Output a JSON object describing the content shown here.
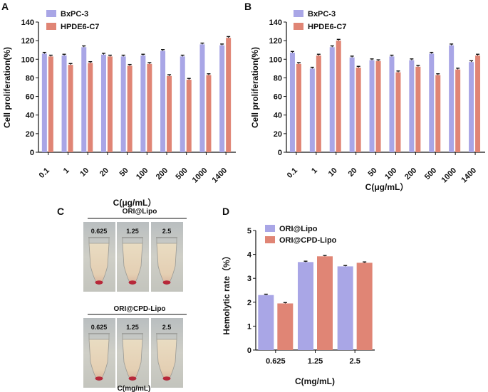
{
  "colors": {
    "series1": "#a9a6e6",
    "series2": "#e08575",
    "axis": "#111111",
    "errbar": "#111111"
  },
  "chart_data": [
    {
      "panel": "A",
      "type": "bar",
      "ylabel": "Cell proliferation(%)",
      "xlabel": "C(μg/mL）",
      "ylim": [
        0,
        140
      ],
      "yticks": [
        0,
        20,
        40,
        60,
        80,
        100,
        120,
        140
      ],
      "categories": [
        "0.1",
        "1",
        "10",
        "20",
        "50",
        "100",
        "200",
        "500",
        "1000",
        "1400"
      ],
      "series": [
        {
          "name": "BxPC-3",
          "values": [
            106,
            104,
            113,
            105,
            103,
            104,
            109,
            103,
            116,
            115
          ]
        },
        {
          "name": "HPDE6-C7",
          "values": [
            103,
            94,
            96,
            103,
            93,
            95,
            82,
            78,
            83,
            123
          ]
        }
      ],
      "legend": "top-left"
    },
    {
      "panel": "B",
      "type": "bar",
      "ylabel": "Cell proliferation(%)",
      "xlabel": "C(μg/mL）",
      "ylim": [
        0,
        140
      ],
      "yticks": [
        0,
        20,
        40,
        60,
        80,
        100,
        120,
        140
      ],
      "categories": [
        "0.1",
        "1",
        "10",
        "20",
        "50",
        "100",
        "200",
        "500",
        "1000",
        "1400"
      ],
      "series": [
        {
          "name": "BxPC-3",
          "values": [
            107,
            90,
            113,
            102,
            99,
            103,
            99,
            106,
            115,
            97
          ]
        },
        {
          "name": "HPDE6-C7",
          "values": [
            95,
            104,
            120,
            91,
            98,
            86,
            92,
            83,
            89,
            104
          ]
        }
      ],
      "legend": "top-left"
    },
    {
      "panel": "D",
      "type": "bar",
      "ylabel": "Hemolytic rate（%）",
      "xlabel": "C(mg/mL)",
      "ylim": [
        0,
        5
      ],
      "yticks": [
        0,
        1,
        2,
        3,
        4,
        5
      ],
      "categories": [
        "0.625",
        "1.25",
        "2.5"
      ],
      "series": [
        {
          "name": "ORI@Lipo",
          "values": [
            2.3,
            3.68,
            3.5
          ]
        },
        {
          "name": "ORI@CPD-Lipo",
          "values": [
            1.95,
            3.92,
            3.65
          ]
        }
      ],
      "legend": "top-left"
    }
  ],
  "panel_c": {
    "letter": "C",
    "group1_label": "ORI@Lipo",
    "group2_label": "ORI@CPD-Lipo",
    "tube_labels": [
      "0.625",
      "1.25",
      "2.5"
    ],
    "xlabel": "C(mg/mL)"
  }
}
